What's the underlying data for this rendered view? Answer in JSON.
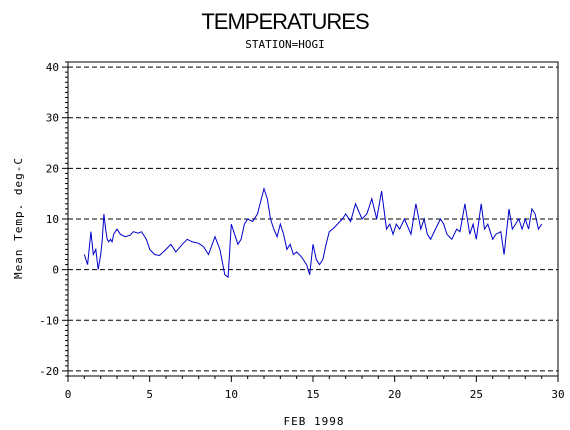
{
  "chart_data": {
    "type": "line",
    "title": "TEMPERATURES",
    "subtitle": "STATION=HOGI",
    "xlabel": "FEB 1998",
    "ylabel": "Mean Temp. deg-C",
    "xlim": [
      0,
      30
    ],
    "ylim": [
      -21,
      41
    ],
    "x_ticks": [
      0,
      5,
      10,
      15,
      20,
      25,
      30
    ],
    "y_ticks": [
      -20,
      -10,
      0,
      10,
      20,
      30,
      40
    ],
    "y_gridlines": [
      -20,
      -10,
      0,
      10,
      20,
      30,
      40
    ],
    "grid": true,
    "line_color": "#0000cc",
    "series": [
      {
        "x": [
          1.0,
          1.2,
          1.4,
          1.55,
          1.7,
          1.85,
          2.0,
          2.1,
          2.2,
          2.3,
          2.4,
          2.5,
          2.6,
          2.7,
          2.8,
          3.0,
          3.2,
          3.5,
          3.8,
          4.0,
          4.3,
          4.5,
          4.8,
          5.0,
          5.3,
          5.6,
          6.0,
          6.3,
          6.6,
          7.0,
          7.3,
          7.6,
          8.0,
          8.3,
          8.6,
          9.0,
          9.3,
          9.6,
          9.8,
          10.0,
          10.2,
          10.4,
          10.6,
          10.8,
          11.0,
          11.3,
          11.6,
          12.0,
          12.2,
          12.4,
          12.6,
          12.8,
          13.0,
          13.2,
          13.4,
          13.6,
          13.8,
          14.0,
          14.3,
          14.6,
          14.8,
          15.0,
          15.2,
          15.4,
          15.6,
          15.8,
          16.0,
          16.2,
          16.5,
          16.8,
          17.0,
          17.3,
          17.6,
          18.0,
          18.3,
          18.6,
          18.9,
          19.2,
          19.5,
          19.7,
          19.9,
          20.1,
          20.3,
          20.6,
          21.0,
          21.3,
          21.6,
          21.8,
          22.0,
          22.2,
          22.5,
          22.8,
          23.0,
          23.2,
          23.5,
          23.8,
          24.0,
          24.3,
          24.6,
          24.8,
          25.0,
          25.3,
          25.5,
          25.7,
          26.0,
          26.2,
          26.5,
          26.7,
          27.0,
          27.2,
          27.4,
          27.6,
          27.8,
          28.0,
          28.2,
          28.4,
          28.6,
          28.8,
          29.0
        ],
        "y": [
          3,
          1,
          7.5,
          3,
          4,
          0,
          3,
          6,
          11,
          8,
          6,
          5.5,
          6,
          5.5,
          7,
          8,
          7,
          6.5,
          6.8,
          7.5,
          7.2,
          7.5,
          6,
          4,
          3,
          2.8,
          4,
          5,
          3.5,
          5,
          6,
          5.5,
          5.2,
          4.5,
          3,
          6.5,
          4,
          -1,
          -1.5,
          9,
          7,
          5,
          6,
          9,
          10,
          9.5,
          11,
          16,
          14,
          10,
          8,
          6.5,
          9,
          7,
          4,
          5,
          3,
          3.5,
          2.5,
          1,
          -1,
          5,
          2,
          1,
          2,
          5,
          7.5,
          8,
          9,
          10,
          11,
          9.5,
          13,
          10,
          11,
          14,
          10,
          15.5,
          8,
          9,
          7,
          9,
          8,
          10,
          7,
          13,
          8,
          10,
          7,
          6,
          8,
          10,
          9,
          7,
          6,
          8,
          7.5,
          13,
          7,
          9,
          6,
          13,
          8,
          9,
          6,
          7,
          7.5,
          3,
          12,
          8,
          9,
          10,
          8,
          10,
          8,
          12,
          11,
          8,
          9
        ]
      }
    ]
  }
}
